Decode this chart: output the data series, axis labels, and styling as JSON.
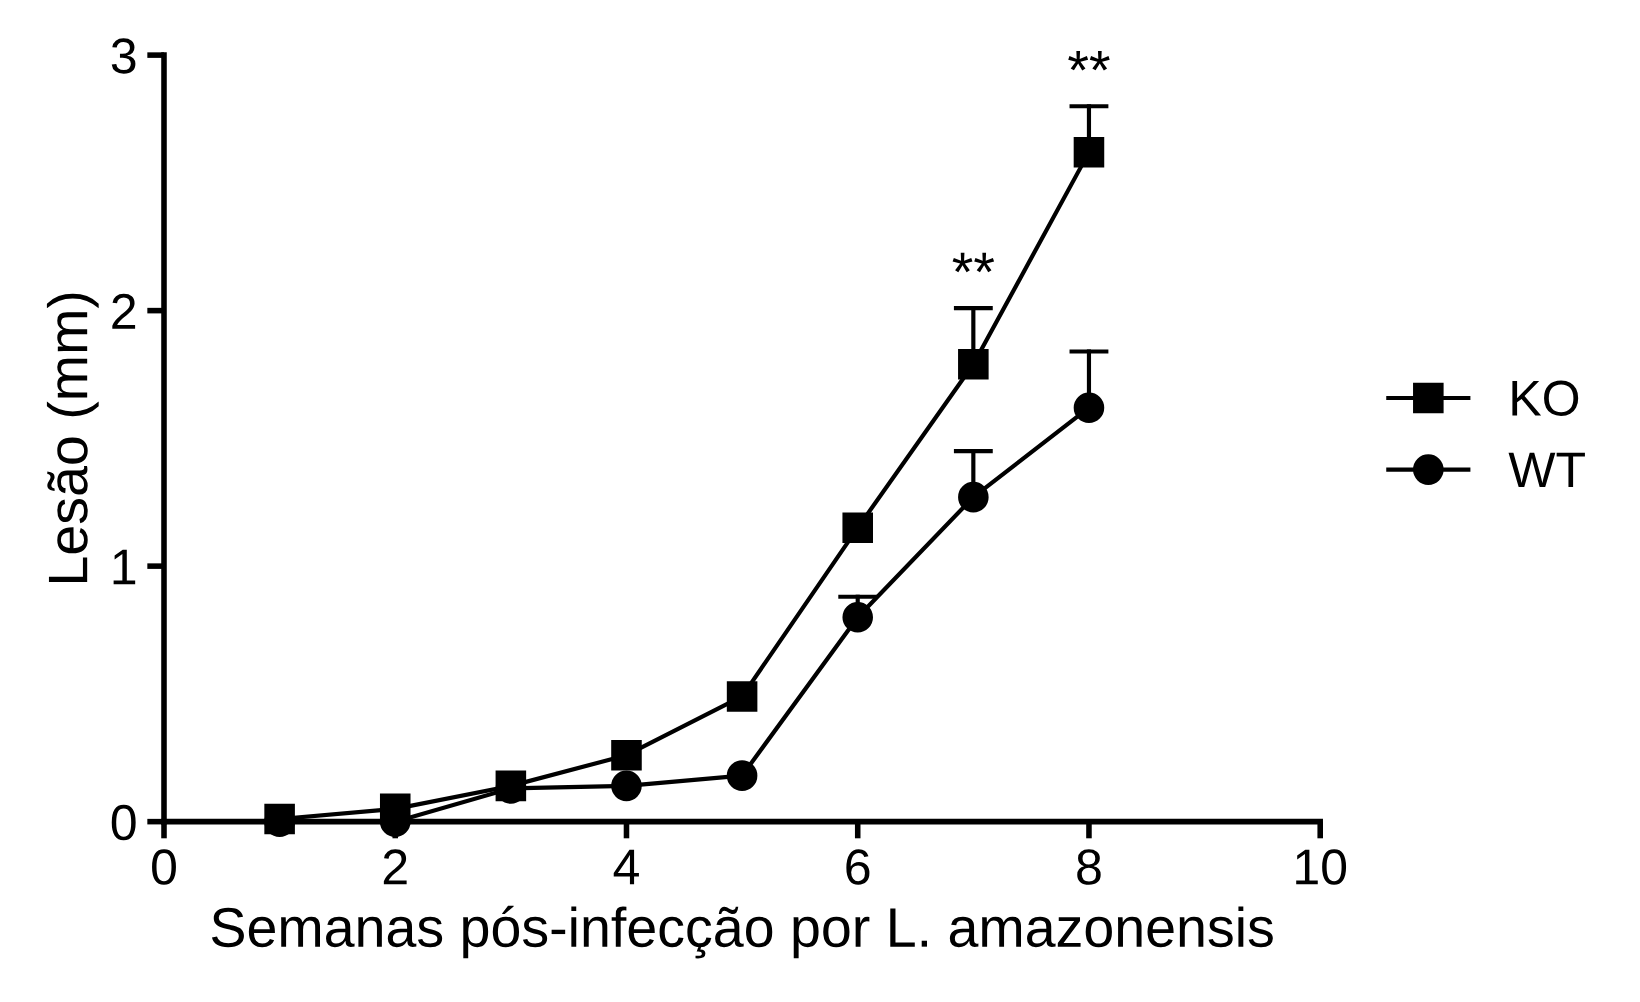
{
  "chart_data": {
    "type": "line",
    "xlabel": "Semanas pós-infecção por L. amazonensis",
    "ylabel": "Lesão (mm)",
    "x": [
      1,
      2,
      3,
      4,
      5,
      6,
      7,
      8
    ],
    "series": [
      {
        "name": "KO",
        "color": "#000000",
        "marker": "square",
        "values": [
          0.01,
          0.05,
          0.14,
          0.26,
          0.49,
          1.15,
          1.79,
          2.62
        ],
        "errors": [
          null,
          null,
          null,
          null,
          null,
          null,
          [
            1.79,
            2.01
          ],
          [
            2.62,
            2.8
          ]
        ]
      },
      {
        "name": "WT",
        "color": "#000000",
        "marker": "circle",
        "values": [
          0.0,
          0.0,
          0.13,
          0.14,
          0.18,
          0.8,
          1.27,
          1.62
        ],
        "errors": [
          null,
          null,
          null,
          null,
          null,
          [
            0.8,
            0.88
          ],
          [
            1.27,
            1.45
          ],
          [
            1.62,
            1.84
          ]
        ]
      }
    ],
    "xlim": [
      0,
      10
    ],
    "xticks": [
      0,
      2,
      4,
      6,
      8,
      10
    ],
    "ylim": [
      0,
      3
    ],
    "yticks": [
      0,
      1,
      2,
      3
    ],
    "annotations": [
      {
        "text": "**",
        "x": 7,
        "y": 2.01
      },
      {
        "text": "**",
        "x": 8,
        "y": 2.8
      }
    ],
    "grid": false,
    "legend": "right",
    "line_style": "solid"
  }
}
